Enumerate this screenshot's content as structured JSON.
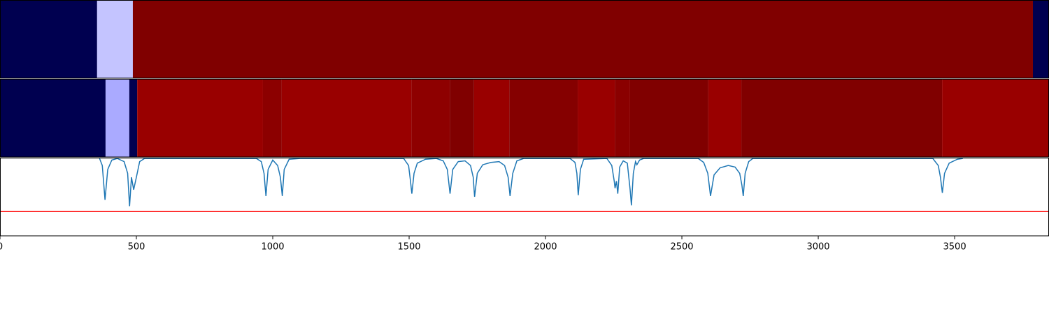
{
  "chart_data": [
    {
      "type": "strip",
      "xlim": [
        0,
        3846
      ],
      "edges": [
        0,
        356,
        487,
        3787,
        3846
      ],
      "colors": [
        "#000050",
        "#c4c4ff",
        "#800000",
        "#000050"
      ]
    },
    {
      "type": "strip",
      "xlim": [
        0,
        3846
      ],
      "edges": [
        0,
        387,
        474,
        503,
        964,
        1033,
        1508,
        1649,
        1738,
        1867,
        2118,
        2254,
        2310,
        2597,
        2718,
        3454,
        3846
      ],
      "colors": [
        "#000050",
        "#aaaaff",
        "#000050",
        "#990000",
        "#8c0000",
        "#990000",
        "#8e0000",
        "#800000",
        "#990000",
        "#850000",
        "#990000",
        "#8a0000",
        "#800000",
        "#990000",
        "#800000",
        "#990000"
      ]
    },
    {
      "type": "line",
      "xlim": [
        0,
        3846
      ],
      "ylim": [
        0,
        1
      ],
      "xticks": [
        0,
        500,
        1000,
        1500,
        2000,
        2500,
        3000,
        3500
      ],
      "hline": {
        "value": 0.31,
        "color": "#ff0000"
      },
      "x": [
        365,
        375,
        385,
        395,
        410,
        430,
        455,
        468,
        475,
        482,
        490,
        500,
        512,
        530,
        940,
        958,
        968,
        975,
        983,
        1000,
        1018,
        1028,
        1035,
        1042,
        1060,
        1100,
        1480,
        1498,
        1505,
        1510,
        1518,
        1530,
        1560,
        1600,
        1625,
        1640,
        1650,
        1660,
        1680,
        1705,
        1725,
        1735,
        1740,
        1750,
        1770,
        1800,
        1830,
        1850,
        1863,
        1870,
        1880,
        1895,
        1920,
        2090,
        2108,
        2115,
        2120,
        2128,
        2140,
        2225,
        2243,
        2252,
        2255,
        2260,
        2265,
        2272,
        2285,
        2300,
        2310,
        2315,
        2322,
        2330,
        2335,
        2345,
        2360,
        2560,
        2580,
        2595,
        2605,
        2618,
        2640,
        2670,
        2695,
        2712,
        2720,
        2725,
        2732,
        2745,
        2760,
        3420,
        3440,
        3448,
        3455,
        3463,
        3480,
        3510,
        3530
      ],
      "series": [
        {
          "color": "#1f77b4",
          "values": [
            0.99,
            0.9,
            0.46,
            0.85,
            0.97,
            0.99,
            0.95,
            0.8,
            0.38,
            0.75,
            0.59,
            0.75,
            0.95,
            0.99,
            0.99,
            0.95,
            0.8,
            0.51,
            0.85,
            0.97,
            0.9,
            0.75,
            0.51,
            0.85,
            0.98,
            0.99,
            0.99,
            0.9,
            0.7,
            0.54,
            0.8,
            0.93,
            0.98,
            0.99,
            0.96,
            0.85,
            0.54,
            0.85,
            0.95,
            0.96,
            0.9,
            0.75,
            0.5,
            0.8,
            0.91,
            0.94,
            0.95,
            0.9,
            0.75,
            0.51,
            0.8,
            0.96,
            0.99,
            0.99,
            0.94,
            0.8,
            0.52,
            0.85,
            0.98,
            0.99,
            0.9,
            0.7,
            0.61,
            0.7,
            0.54,
            0.88,
            0.96,
            0.93,
            0.6,
            0.39,
            0.8,
            0.95,
            0.91,
            0.97,
            0.99,
            0.99,
            0.94,
            0.8,
            0.51,
            0.78,
            0.87,
            0.9,
            0.88,
            0.8,
            0.65,
            0.51,
            0.8,
            0.95,
            0.99,
            0.99,
            0.9,
            0.75,
            0.55,
            0.8,
            0.93,
            0.98,
            0.99
          ]
        }
      ]
    }
  ]
}
